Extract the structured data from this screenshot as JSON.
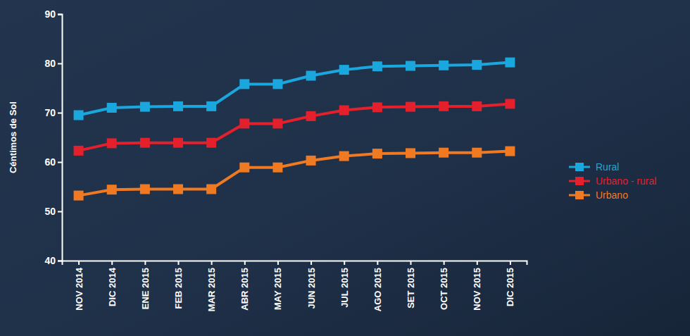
{
  "chart_data": {
    "type": "line",
    "y_label": "Céntimos de Sol",
    "categories": [
      "NOV 2014",
      "DIC 2014",
      "ENE 2015",
      "FEB 2015",
      "MAR 2015",
      "ABR 2015",
      "MAY 2015",
      "JUN 2015",
      "JUL 2015",
      "AGO 2015",
      "SET 2015",
      "OCT 2015",
      "NOV 2015",
      "DIC 2015"
    ],
    "series": [
      {
        "name": "Rural",
        "color": "#1aa7de",
        "marker": "square",
        "values": [
          69.5,
          71.0,
          71.2,
          71.3,
          71.3,
          75.8,
          75.8,
          77.5,
          78.7,
          79.4,
          79.5,
          79.6,
          79.7,
          80.2
        ]
      },
      {
        "name": "Urbano - rural",
        "color": "#e3202b",
        "marker": "square",
        "values": [
          62.3,
          63.8,
          63.9,
          63.9,
          63.9,
          67.8,
          67.8,
          69.3,
          70.5,
          71.1,
          71.2,
          71.3,
          71.3,
          71.8
        ]
      },
      {
        "name": "Urbano",
        "color": "#f07a22",
        "marker": "square",
        "values": [
          53.2,
          54.4,
          54.5,
          54.5,
          54.5,
          58.9,
          58.9,
          60.3,
          61.2,
          61.7,
          61.8,
          61.9,
          61.9,
          62.2
        ]
      }
    ],
    "ylim": [
      40,
      90
    ],
    "yticks": [
      40,
      50,
      60,
      70,
      80,
      90
    ],
    "grid": false,
    "legend": "right"
  }
}
